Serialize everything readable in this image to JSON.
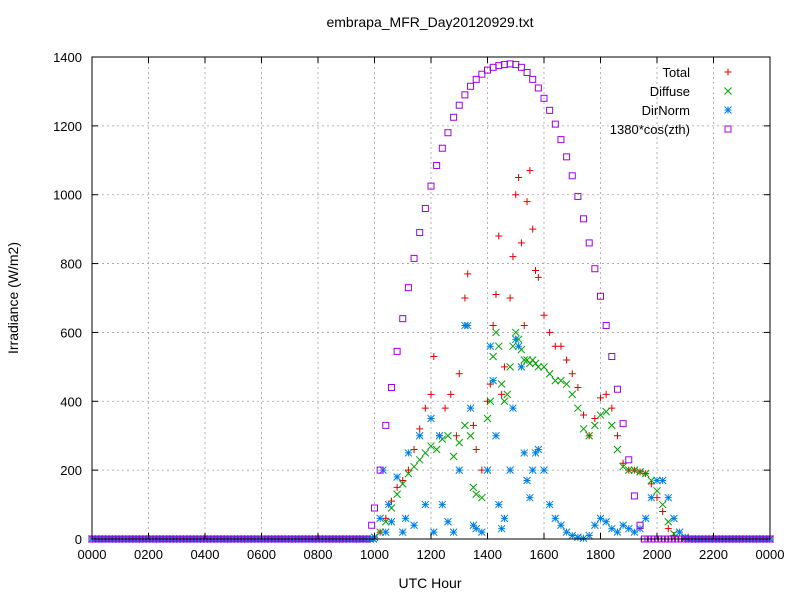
{
  "chart_data": {
    "type": "scatter",
    "title": "embrapa_MFR_Day20120929.txt",
    "xlabel": "UTC Hour",
    "ylabel": "Irradiance (W/m2)",
    "xlim": [
      0,
      24
    ],
    "ylim": [
      0,
      1400
    ],
    "grid": true,
    "legend_position": "top-right",
    "x_ticks": [
      0,
      2,
      4,
      6,
      8,
      10,
      12,
      14,
      16,
      18,
      20,
      22,
      24
    ],
    "x_tick_labels": [
      "0000",
      "0200",
      "0400",
      "0600",
      "0800",
      "1000",
      "1200",
      "1400",
      "1600",
      "1800",
      "2000",
      "2200",
      "0000"
    ],
    "y_ticks": [
      0,
      200,
      400,
      600,
      800,
      1000,
      1200,
      1400
    ],
    "y_tick_labels": [
      "0",
      "200",
      "400",
      "600",
      "800",
      "1000",
      "1200",
      "1400"
    ],
    "series": [
      {
        "name": "Total",
        "marker": "plus",
        "color": "#e00000",
        "points": [
          [
            10.0,
            5
          ],
          [
            10.2,
            20
          ],
          [
            10.4,
            60
          ],
          [
            10.6,
            110
          ],
          [
            10.8,
            150
          ],
          [
            11.0,
            170
          ],
          [
            11.2,
            200
          ],
          [
            11.4,
            260
          ],
          [
            11.6,
            320
          ],
          [
            11.8,
            380
          ],
          [
            12.0,
            420
          ],
          [
            12.1,
            530
          ],
          [
            12.3,
            300
          ],
          [
            12.5,
            380
          ],
          [
            12.7,
            420
          ],
          [
            12.9,
            300
          ],
          [
            13.0,
            480
          ],
          [
            13.2,
            700
          ],
          [
            13.3,
            770
          ],
          [
            13.5,
            330
          ],
          [
            13.6,
            260
          ],
          [
            13.8,
            200
          ],
          [
            14.0,
            400
          ],
          [
            14.1,
            450
          ],
          [
            14.2,
            620
          ],
          [
            14.3,
            710
          ],
          [
            14.4,
            880
          ],
          [
            14.5,
            420
          ],
          [
            14.6,
            500
          ],
          [
            14.8,
            700
          ],
          [
            14.9,
            820
          ],
          [
            15.0,
            1000
          ],
          [
            15.1,
            1050
          ],
          [
            15.2,
            860
          ],
          [
            15.3,
            620
          ],
          [
            15.4,
            980
          ],
          [
            15.5,
            1070
          ],
          [
            15.6,
            900
          ],
          [
            15.7,
            780
          ],
          [
            15.8,
            760
          ],
          [
            16.0,
            650
          ],
          [
            16.2,
            600
          ],
          [
            16.4,
            560
          ],
          [
            16.6,
            560
          ],
          [
            16.8,
            520
          ],
          [
            17.0,
            480
          ],
          [
            17.2,
            440
          ],
          [
            17.4,
            360
          ],
          [
            17.6,
            300
          ],
          [
            17.8,
            350
          ],
          [
            18.0,
            410
          ],
          [
            18.2,
            420
          ],
          [
            18.4,
            380
          ],
          [
            18.6,
            300
          ],
          [
            18.8,
            220
          ],
          [
            19.0,
            200
          ],
          [
            19.2,
            200
          ],
          [
            19.4,
            195
          ],
          [
            19.6,
            190
          ],
          [
            19.8,
            160
          ],
          [
            20.0,
            120
          ],
          [
            20.2,
            80
          ],
          [
            20.4,
            30
          ],
          [
            20.6,
            10
          ],
          [
            21.0,
            2
          ]
        ]
      },
      {
        "name": "Diffuse",
        "marker": "cross",
        "color": "#00a000",
        "points": [
          [
            10.0,
            5
          ],
          [
            10.2,
            20
          ],
          [
            10.4,
            50
          ],
          [
            10.6,
            90
          ],
          [
            10.8,
            130
          ],
          [
            11.0,
            160
          ],
          [
            11.2,
            190
          ],
          [
            11.4,
            210
          ],
          [
            11.6,
            230
          ],
          [
            11.8,
            250
          ],
          [
            12.0,
            270
          ],
          [
            12.2,
            260
          ],
          [
            12.4,
            290
          ],
          [
            12.6,
            300
          ],
          [
            12.8,
            240
          ],
          [
            13.0,
            280
          ],
          [
            13.2,
            330
          ],
          [
            13.4,
            300
          ],
          [
            13.5,
            150
          ],
          [
            13.6,
            130
          ],
          [
            13.8,
            120
          ],
          [
            14.0,
            350
          ],
          [
            14.1,
            400
          ],
          [
            14.2,
            530
          ],
          [
            14.3,
            600
          ],
          [
            14.4,
            560
          ],
          [
            14.5,
            450
          ],
          [
            14.6,
            400
          ],
          [
            14.7,
            420
          ],
          [
            14.8,
            500
          ],
          [
            14.9,
            560
          ],
          [
            15.0,
            600
          ],
          [
            15.1,
            580
          ],
          [
            15.2,
            550
          ],
          [
            15.3,
            520
          ],
          [
            15.4,
            520
          ],
          [
            15.5,
            510
          ],
          [
            15.6,
            520
          ],
          [
            15.7,
            510
          ],
          [
            15.8,
            500
          ],
          [
            16.0,
            500
          ],
          [
            16.2,
            480
          ],
          [
            16.4,
            460
          ],
          [
            16.6,
            460
          ],
          [
            16.8,
            450
          ],
          [
            17.0,
            420
          ],
          [
            17.2,
            380
          ],
          [
            17.4,
            320
          ],
          [
            17.6,
            300
          ],
          [
            17.8,
            330
          ],
          [
            18.0,
            360
          ],
          [
            18.2,
            370
          ],
          [
            18.4,
            330
          ],
          [
            18.6,
            260
          ],
          [
            18.8,
            210
          ],
          [
            19.0,
            200
          ],
          [
            19.2,
            200
          ],
          [
            19.4,
            195
          ],
          [
            19.6,
            190
          ],
          [
            19.8,
            170
          ],
          [
            20.0,
            140
          ],
          [
            20.2,
            100
          ],
          [
            20.4,
            50
          ],
          [
            20.6,
            15
          ],
          [
            21.0,
            2
          ]
        ]
      },
      {
        "name": "DirNorm",
        "marker": "star",
        "color": "#0080e0",
        "points": [
          [
            10.0,
            5
          ],
          [
            10.2,
            60
          ],
          [
            10.3,
            200
          ],
          [
            10.4,
            20
          ],
          [
            10.5,
            100
          ],
          [
            10.6,
            50
          ],
          [
            10.8,
            180
          ],
          [
            11.0,
            20
          ],
          [
            11.1,
            60
          ],
          [
            11.2,
            250
          ],
          [
            11.4,
            40
          ],
          [
            11.6,
            300
          ],
          [
            11.8,
            100
          ],
          [
            12.0,
            350
          ],
          [
            12.1,
            20
          ],
          [
            12.3,
            300
          ],
          [
            12.4,
            100
          ],
          [
            12.6,
            50
          ],
          [
            12.8,
            20
          ],
          [
            13.0,
            200
          ],
          [
            13.2,
            620
          ],
          [
            13.3,
            620
          ],
          [
            13.4,
            380
          ],
          [
            13.5,
            40
          ],
          [
            13.6,
            30
          ],
          [
            13.8,
            20
          ],
          [
            14.0,
            200
          ],
          [
            14.1,
            560
          ],
          [
            14.2,
            460
          ],
          [
            14.3,
            300
          ],
          [
            14.4,
            100
          ],
          [
            14.5,
            30
          ],
          [
            14.6,
            60
          ],
          [
            14.8,
            200
          ],
          [
            14.9,
            380
          ],
          [
            15.0,
            580
          ],
          [
            15.1,
            560
          ],
          [
            15.2,
            500
          ],
          [
            15.3,
            250
          ],
          [
            15.4,
            170
          ],
          [
            15.5,
            120
          ],
          [
            15.6,
            200
          ],
          [
            15.7,
            250
          ],
          [
            15.8,
            260
          ],
          [
            16.0,
            200
          ],
          [
            16.2,
            100
          ],
          [
            16.4,
            60
          ],
          [
            16.6,
            40
          ],
          [
            16.8,
            20
          ],
          [
            17.0,
            10
          ],
          [
            17.2,
            5
          ],
          [
            17.4,
            2
          ],
          [
            17.6,
            10
          ],
          [
            17.8,
            40
          ],
          [
            18.0,
            60
          ],
          [
            18.2,
            50
          ],
          [
            18.4,
            30
          ],
          [
            18.6,
            20
          ],
          [
            18.8,
            40
          ],
          [
            19.0,
            30
          ],
          [
            19.2,
            20
          ],
          [
            19.4,
            30
          ],
          [
            19.6,
            60
          ],
          [
            19.8,
            120
          ],
          [
            20.0,
            170
          ],
          [
            20.2,
            170
          ],
          [
            20.4,
            120
          ],
          [
            20.6,
            60
          ],
          [
            20.8,
            20
          ],
          [
            21.0,
            5
          ]
        ]
      },
      {
        "name": "1380*cos(zth)",
        "marker": "square",
        "color": "#a000e0",
        "points": [
          [
            9.74,
            0
          ],
          [
            9.9,
            40
          ],
          [
            10.0,
            90
          ],
          [
            10.2,
            200
          ],
          [
            10.4,
            330
          ],
          [
            10.6,
            440
          ],
          [
            10.8,
            545
          ],
          [
            11.0,
            640
          ],
          [
            11.2,
            730
          ],
          [
            11.4,
            815
          ],
          [
            11.6,
            890
          ],
          [
            11.8,
            960
          ],
          [
            12.0,
            1025
          ],
          [
            12.2,
            1085
          ],
          [
            12.4,
            1135
          ],
          [
            12.6,
            1180
          ],
          [
            12.8,
            1225
          ],
          [
            13.0,
            1260
          ],
          [
            13.2,
            1290
          ],
          [
            13.4,
            1315
          ],
          [
            13.6,
            1335
          ],
          [
            13.8,
            1350
          ],
          [
            14.0,
            1362
          ],
          [
            14.2,
            1370
          ],
          [
            14.4,
            1375
          ],
          [
            14.6,
            1378
          ],
          [
            14.8,
            1380
          ],
          [
            15.0,
            1378
          ],
          [
            15.2,
            1370
          ],
          [
            15.4,
            1355
          ],
          [
            15.6,
            1335
          ],
          [
            15.8,
            1310
          ],
          [
            16.0,
            1280
          ],
          [
            16.2,
            1245
          ],
          [
            16.4,
            1205
          ],
          [
            16.6,
            1160
          ],
          [
            16.8,
            1110
          ],
          [
            17.0,
            1055
          ],
          [
            17.2,
            995
          ],
          [
            17.4,
            930
          ],
          [
            17.6,
            860
          ],
          [
            17.8,
            785
          ],
          [
            18.0,
            705
          ],
          [
            18.2,
            620
          ],
          [
            18.4,
            530
          ],
          [
            18.6,
            435
          ],
          [
            18.8,
            335
          ],
          [
            19.0,
            230
          ],
          [
            19.2,
            125
          ],
          [
            19.4,
            40
          ],
          [
            19.55,
            0
          ]
        ]
      }
    ]
  }
}
